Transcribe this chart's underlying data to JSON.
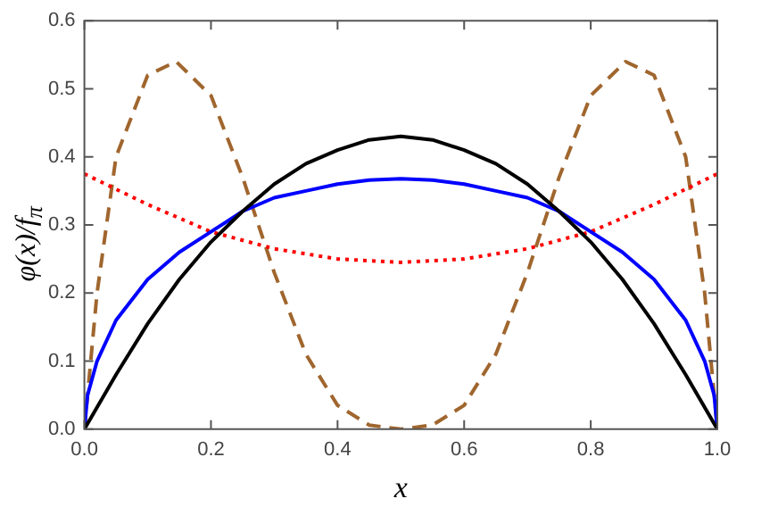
{
  "chart_data": {
    "type": "line",
    "xlabel": "x",
    "ylabel": "φ(x)/f$_{π}$",
    "xlim": [
      0,
      1
    ],
    "ylim": [
      0,
      0.6
    ],
    "xticks": [
      {
        "value": 0,
        "label": "0.0"
      },
      0.2,
      0.4,
      0.6,
      0.8,
      {
        "value": 1,
        "label": "1.0"
      }
    ],
    "yticks": [
      {
        "value": 0,
        "label": "0.0"
      },
      0.1,
      0.2,
      0.3,
      0.4,
      0.5,
      0.6
    ],
    "grid": false,
    "legend": false,
    "marker": "none",
    "series": [
      {
        "color": "#000000",
        "line_style": "solid",
        "x": [
          0,
          0.05,
          0.1,
          0.15,
          0.2,
          0.25,
          0.3,
          0.35,
          0.4,
          0.45,
          0.5,
          0.55,
          0.6,
          0.65,
          0.7,
          0.75,
          0.8,
          0.85,
          0.9,
          0.95,
          1
        ],
        "values": [
          0,
          0.08,
          0.155,
          0.22,
          0.275,
          0.32,
          0.36,
          0.39,
          0.41,
          0.425,
          0.43,
          0.425,
          0.41,
          0.39,
          0.36,
          0.32,
          0.275,
          0.22,
          0.155,
          0.08,
          0
        ]
      },
      {
        "color": "#0000ff",
        "line_style": "solid",
        "x": [
          0,
          0.005,
          0.02,
          0.05,
          0.1,
          0.15,
          0.2,
          0.25,
          0.3,
          0.35,
          0.4,
          0.45,
          0.5,
          0.55,
          0.6,
          0.65,
          0.7,
          0.75,
          0.8,
          0.85,
          0.9,
          0.95,
          0.98,
          0.995,
          1
        ],
        "values": [
          0,
          0.05,
          0.1,
          0.16,
          0.22,
          0.26,
          0.29,
          0.32,
          0.34,
          0.35,
          0.36,
          0.366,
          0.368,
          0.366,
          0.36,
          0.35,
          0.34,
          0.32,
          0.29,
          0.26,
          0.22,
          0.16,
          0.1,
          0.05,
          0
        ]
      },
      {
        "color": "#ff0000",
        "line_style": "dotted",
        "x": [
          0,
          0.1,
          0.2,
          0.3,
          0.4,
          0.5,
          0.6,
          0.7,
          0.8,
          0.9,
          1
        ],
        "values": [
          0.375,
          0.33,
          0.29,
          0.265,
          0.25,
          0.245,
          0.25,
          0.265,
          0.29,
          0.33,
          0.375
        ]
      },
      {
        "color": "#a0662e",
        "line_style": "dashed",
        "x": [
          0,
          0.02,
          0.05,
          0.1,
          0.145,
          0.2,
          0.25,
          0.3,
          0.35,
          0.4,
          0.45,
          0.5,
          0.55,
          0.6,
          0.65,
          0.7,
          0.75,
          0.8,
          0.855,
          0.9,
          0.95,
          0.98,
          1
        ],
        "values": [
          0,
          0.2,
          0.4,
          0.52,
          0.54,
          0.49,
          0.37,
          0.23,
          0.11,
          0.035,
          0.006,
          0,
          0.006,
          0.035,
          0.11,
          0.23,
          0.37,
          0.49,
          0.54,
          0.52,
          0.4,
          0.2,
          0
        ]
      }
    ]
  }
}
